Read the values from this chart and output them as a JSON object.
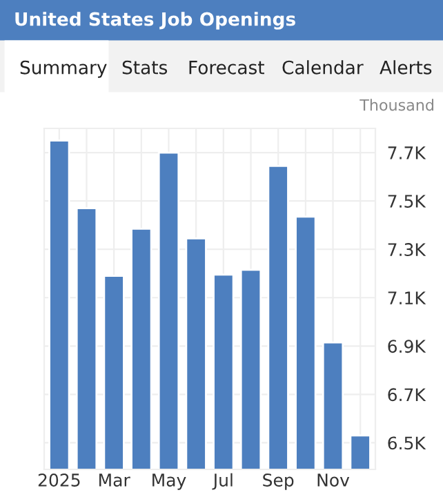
{
  "chart_data": {
    "type": "bar",
    "title": "United States Job Openings",
    "annotations": [
      "Summary",
      "Stats",
      "Forecast",
      "Calendar",
      "Alerts"
    ],
    "ylabel": "Thousand",
    "categories": [
      "2025",
      null,
      "Mar",
      null,
      "May",
      null,
      "Jul",
      null,
      "Sep",
      null,
      "Nov",
      null
    ],
    "values": [
      7750,
      7470,
      7190,
      7385,
      7700,
      7345,
      7195,
      7215,
      7645,
      7435,
      6915,
      6530
    ],
    "color": "#4d7fbf",
    "ylim": [
      6390,
      7800
    ],
    "yticks": [
      {
        "value": 6500,
        "label": "6.5K"
      },
      {
        "value": 6700,
        "label": "6.7K"
      },
      {
        "value": 6900,
        "label": "6.9K"
      },
      {
        "value": 7100,
        "label": "7.1K"
      },
      {
        "value": 7300,
        "label": "7.3K"
      },
      {
        "value": 7500,
        "label": "7.5K"
      },
      {
        "value": 7700,
        "label": "7.7K"
      }
    ],
    "grid": true
  }
}
